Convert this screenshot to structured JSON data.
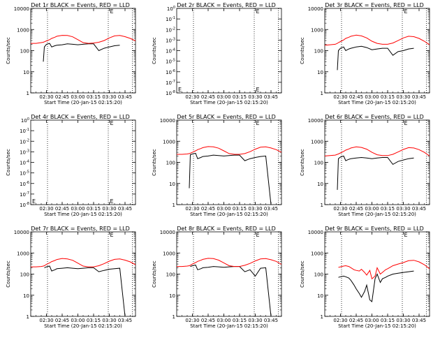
{
  "colors": {
    "events": "#000000",
    "lld": "#ff0000",
    "axis": "#000000"
  },
  "common": {
    "xlabel": "Start Time (20-Jan-15 02:15:20)",
    "ylabel": "Counts/sec",
    "x_range": [
      "02:15",
      "03:55"
    ],
    "x_ticks": [
      "02:30",
      "02:45",
      "03:00",
      "03:15",
      "03:30",
      "03:45"
    ],
    "dotted_vlines": [
      "02:31",
      "03:29",
      "03:52"
    ],
    "marker_label": "E",
    "y_scale": "log",
    "grid": false
  },
  "chart_data": [
    {
      "type": "line",
      "title": "Det 1r BLACK = Events, RED = LLD",
      "ylim": [
        1,
        10000
      ],
      "y_ticks": [
        "1",
        "10",
        "100",
        "1000",
        "10000"
      ],
      "x": [
        "02:15",
        "02:20",
        "02:25",
        "02:27",
        "02:28",
        "02:30",
        "02:33",
        "02:35",
        "02:38",
        "02:40",
        "02:45",
        "02:50",
        "02:55",
        "03:00",
        "03:05",
        "03:10",
        "03:15",
        "03:20",
        "03:25",
        "03:30",
        "03:35",
        "03:40",
        "03:45",
        "03:50",
        "03:55"
      ],
      "series": [
        {
          "name": "BLACK = Events",
          "values": [
            null,
            null,
            null,
            30,
            150,
            200,
            220,
            150,
            170,
            180,
            190,
            210,
            200,
            190,
            200,
            210,
            210,
            100,
            130,
            150,
            170,
            180,
            null,
            null,
            null
          ]
        },
        {
          "name": "RED = LLD",
          "values": [
            220,
            220,
            240,
            250,
            260,
            290,
            330,
            380,
            430,
            480,
            530,
            520,
            450,
            330,
            240,
            220,
            230,
            250,
            300,
            400,
            500,
            520,
            460,
            380,
            290
          ]
        }
      ]
    },
    {
      "type": "line",
      "title": "Det 2r BLACK = Events, RED = LLD",
      "ylim": [
        1,
        1e-08
      ],
      "y_ticks": [
        "10^-8",
        "10^-7",
        "10^-6",
        "10^-5",
        "10^-4",
        "10^-3",
        "10^-2",
        "10^-1",
        "10^0"
      ],
      "x": [],
      "series": []
    },
    {
      "type": "line",
      "title": "Det 3r BLACK = Events, RED = LLD",
      "ylim": [
        1,
        10000
      ],
      "y_ticks": [
        "1",
        "10",
        "100",
        "1000",
        "10000"
      ],
      "x": [
        "02:15",
        "02:20",
        "02:25",
        "02:27",
        "02:28",
        "02:30",
        "02:33",
        "02:35",
        "02:38",
        "02:40",
        "02:45",
        "02:50",
        "02:55",
        "03:00",
        "03:05",
        "03:10",
        "03:15",
        "03:20",
        "03:25",
        "03:30",
        "03:35",
        "03:40",
        "03:45",
        "03:50",
        "03:55"
      ],
      "series": [
        {
          "name": "BLACK = Events",
          "values": [
            null,
            null,
            null,
            12,
            100,
            130,
            150,
            100,
            120,
            130,
            150,
            160,
            140,
            110,
            120,
            130,
            130,
            60,
            90,
            100,
            120,
            130,
            null,
            null,
            null
          ]
        },
        {
          "name": "RED = LLD",
          "values": [
            180,
            190,
            200,
            220,
            240,
            270,
            320,
            380,
            430,
            480,
            540,
            500,
            400,
            280,
            220,
            200,
            200,
            230,
            300,
            400,
            480,
            460,
            380,
            280,
            190
          ]
        }
      ]
    },
    {
      "type": "line",
      "title": "Det 4r BLACK = Events, RED = LLD",
      "ylim": [
        1,
        1e-08
      ],
      "y_ticks": [
        "10^-8",
        "10^-7",
        "10^-6",
        "10^-5",
        "10^-4",
        "10^-3",
        "10^-2",
        "10^-1",
        "10^0"
      ],
      "x": [],
      "series": []
    },
    {
      "type": "line",
      "title": "Det 5r BLACK = Events, RED = LLD",
      "ylim": [
        1,
        10000
      ],
      "y_ticks": [
        "1",
        "10",
        "100",
        "1000",
        "10000"
      ],
      "x": [
        "02:15",
        "02:20",
        "02:25",
        "02:27",
        "02:28",
        "02:30",
        "02:33",
        "02:35",
        "02:38",
        "02:40",
        "02:45",
        "02:50",
        "02:55",
        "03:00",
        "03:05",
        "03:10",
        "03:15",
        "03:20",
        "03:25",
        "03:30",
        "03:35",
        "03:40",
        "03:45",
        "03:50",
        "03:55"
      ],
      "series": [
        {
          "name": "BLACK = Events",
          "values": [
            null,
            null,
            null,
            6,
            230,
            250,
            270,
            150,
            170,
            190,
            200,
            220,
            210,
            200,
            210,
            220,
            220,
            120,
            150,
            170,
            190,
            200,
            1,
            null,
            null
          ]
        },
        {
          "name": "RED = LLD",
          "values": [
            240,
            240,
            250,
            260,
            270,
            300,
            350,
            400,
            450,
            500,
            560,
            540,
            470,
            350,
            260,
            240,
            240,
            260,
            320,
            420,
            520,
            540,
            480,
            400,
            300
          ]
        }
      ]
    },
    {
      "type": "line",
      "title": "Det 6r BLACK = Events, RED = LLD",
      "ylim": [
        1,
        10000
      ],
      "y_ticks": [
        "1",
        "10",
        "100",
        "1000",
        "10000"
      ],
      "x": [
        "02:15",
        "02:20",
        "02:25",
        "02:27",
        "02:28",
        "02:30",
        "02:33",
        "02:35",
        "02:38",
        "02:40",
        "02:45",
        "02:50",
        "02:55",
        "03:00",
        "03:05",
        "03:10",
        "03:15",
        "03:20",
        "03:25",
        "03:30",
        "03:35",
        "03:40",
        "03:45",
        "03:50",
        "03:55"
      ],
      "series": [
        {
          "name": "BLACK = Events",
          "values": [
            null,
            null,
            null,
            5,
            150,
            180,
            200,
            120,
            140,
            150,
            160,
            170,
            160,
            150,
            160,
            170,
            170,
            80,
            110,
            130,
            150,
            160,
            null,
            null,
            null
          ]
        },
        {
          "name": "RED = LLD",
          "values": [
            200,
            210,
            220,
            240,
            250,
            280,
            330,
            380,
            430,
            480,
            540,
            510,
            420,
            300,
            230,
            210,
            210,
            240,
            310,
            410,
            500,
            480,
            400,
            300,
            200
          ]
        }
      ]
    },
    {
      "type": "line",
      "title": "Det 7r BLACK = Events, RED = LLD",
      "ylim": [
        1,
        10000
      ],
      "y_ticks": [
        "1",
        "10",
        "100",
        "1000",
        "10000"
      ],
      "x": [
        "02:15",
        "02:20",
        "02:25",
        "02:27",
        "02:28",
        "02:30",
        "02:33",
        "02:35",
        "02:38",
        "02:40",
        "02:45",
        "02:50",
        "02:55",
        "03:00",
        "03:05",
        "03:10",
        "03:15",
        "03:20",
        "03:25",
        "03:30",
        "03:35",
        "03:40",
        "03:45",
        "03:50",
        "03:55"
      ],
      "series": [
        {
          "name": "BLACK = Events",
          "values": [
            null,
            null,
            null,
            null,
            200,
            220,
            240,
            140,
            160,
            180,
            190,
            200,
            190,
            180,
            190,
            200,
            200,
            130,
            150,
            170,
            180,
            190,
            1,
            null,
            null
          ]
        },
        {
          "name": "RED = LLD",
          "values": [
            220,
            220,
            230,
            240,
            250,
            290,
            340,
            390,
            440,
            490,
            550,
            520,
            450,
            330,
            240,
            220,
            220,
            250,
            310,
            410,
            500,
            520,
            460,
            380,
            280
          ]
        }
      ]
    },
    {
      "type": "line",
      "title": "Det 8r BLACK = Events, RED = LLD",
      "ylim": [
        1,
        10000
      ],
      "y_ticks": [
        "1",
        "10",
        "100",
        "1000",
        "10000"
      ],
      "x": [
        "02:15",
        "02:20",
        "02:25",
        "02:27",
        "02:28",
        "02:30",
        "02:33",
        "02:35",
        "02:38",
        "02:40",
        "02:45",
        "02:50",
        "02:55",
        "03:00",
        "03:05",
        "03:10",
        "03:15",
        "03:20",
        "03:25",
        "03:30",
        "03:35",
        "03:40",
        "03:45",
        "03:50",
        "03:55"
      ],
      "series": [
        {
          "name": "BLACK = Events",
          "values": [
            null,
            null,
            null,
            null,
            230,
            250,
            270,
            160,
            180,
            200,
            210,
            230,
            220,
            210,
            220,
            230,
            230,
            130,
            160,
            80,
            190,
            200,
            1,
            null,
            null
          ]
        },
        {
          "name": "RED = LLD",
          "values": [
            230,
            230,
            240,
            250,
            260,
            300,
            350,
            400,
            450,
            500,
            560,
            540,
            460,
            340,
            250,
            230,
            230,
            260,
            320,
            420,
            520,
            540,
            480,
            400,
            290
          ]
        }
      ]
    },
    {
      "type": "line",
      "title": "Det 9r BLACK = Events, RED = LLD",
      "ylim": [
        1,
        10000
      ],
      "y_ticks": [
        "1",
        "10",
        "100",
        "1000",
        "10000"
      ],
      "x": [
        "02:28",
        "02:30",
        "02:33",
        "02:35",
        "02:38",
        "02:40",
        "02:43",
        "02:45",
        "02:48",
        "02:50",
        "02:53",
        "02:55",
        "02:58",
        "03:00",
        "03:03",
        "03:05",
        "03:08",
        "03:10",
        "03:13",
        "03:15",
        "03:20",
        "03:25",
        "03:30",
        "03:35",
        "03:40",
        "03:45",
        "03:50",
        "03:55"
      ],
      "series": [
        {
          "name": "BLACK = Events",
          "values": [
            70,
            75,
            80,
            75,
            65,
            50,
            30,
            20,
            12,
            8,
            15,
            30,
            6,
            5,
            60,
            100,
            40,
            60,
            70,
            80,
            100,
            110,
            120,
            130,
            140,
            null,
            null,
            null
          ]
        },
        {
          "name": "RED = LLD",
          "values": [
            210,
            220,
            240,
            250,
            230,
            200,
            160,
            150,
            140,
            170,
            120,
            90,
            150,
            60,
            80,
            200,
            100,
            120,
            160,
            180,
            250,
            300,
            350,
            430,
            450,
            380,
            280,
            180
          ]
        }
      ]
    }
  ]
}
